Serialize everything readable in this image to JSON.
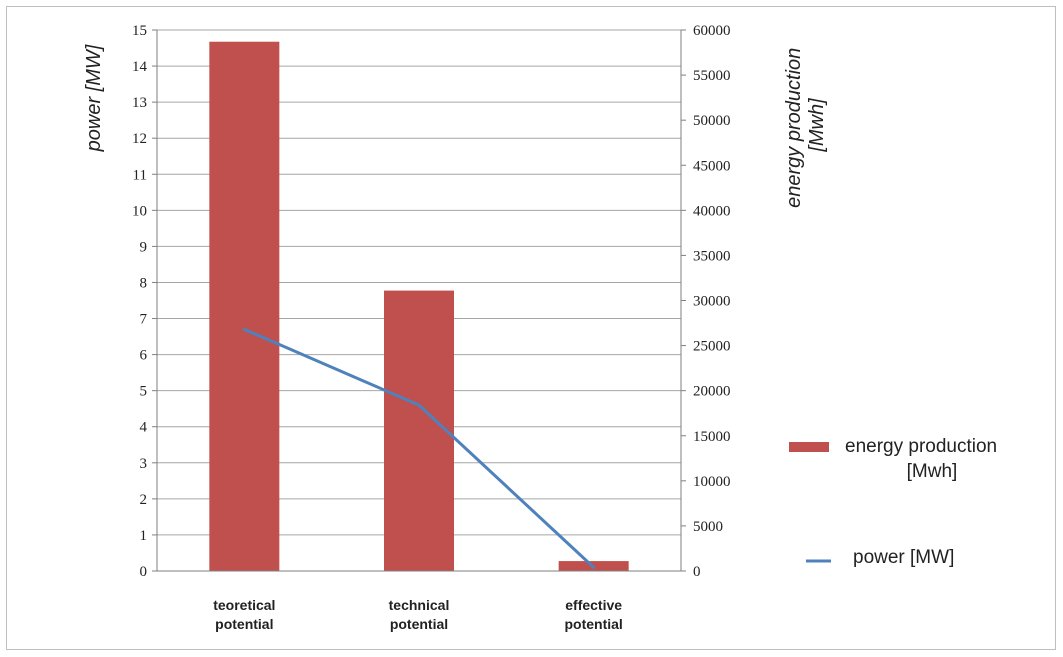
{
  "chart_data": {
    "type": "bar+line",
    "categories": [
      [
        "teoretical",
        "potential"
      ],
      [
        "technical",
        "potential"
      ],
      [
        "effective",
        "potential"
      ]
    ],
    "series": [
      {
        "name": "energy production [Mwh]",
        "name_lines": [
          "energy production",
          "[Mwh]"
        ],
        "type": "bar",
        "axis": "right",
        "values": [
          58700,
          31100,
          1100
        ],
        "color": "#c0504d"
      },
      {
        "name": "power [MW]",
        "type": "line",
        "axis": "left",
        "values": [
          6.7,
          4.6,
          0.1
        ],
        "color": "#4f81bd"
      }
    ],
    "left_axis": {
      "label": "power [MW]",
      "min": 0,
      "max": 15,
      "ticks": [
        0,
        1,
        2,
        3,
        4,
        5,
        6,
        7,
        8,
        9,
        10,
        11,
        12,
        13,
        14,
        15
      ]
    },
    "right_axis": {
      "label_lines": [
        "energy production",
        "[Mwh]"
      ],
      "min": 0,
      "max": 60000,
      "ticks": [
        0,
        5000,
        10000,
        15000,
        20000,
        25000,
        30000,
        35000,
        40000,
        45000,
        50000,
        55000,
        60000
      ]
    },
    "grid": true,
    "legend_position": "right"
  }
}
